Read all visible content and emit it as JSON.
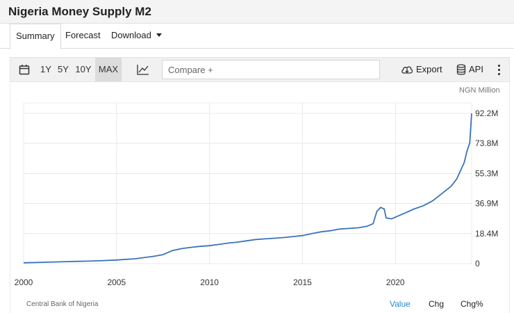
{
  "page": {
    "title": "Nigeria Money Supply M2"
  },
  "tabs": [
    {
      "label": "Summary",
      "active": true
    },
    {
      "label": "Forecast",
      "active": false
    },
    {
      "label": "Download",
      "active": false,
      "has_dropdown": true
    }
  ],
  "toolbar": {
    "ranges": [
      "1Y",
      "5Y",
      "10Y",
      "MAX"
    ],
    "selected_range": "MAX",
    "compare_placeholder": "Compare +",
    "export_label": "Export",
    "api_label": "API",
    "icons": [
      "calendar-icon",
      "line-chart-icon",
      "cloud-download-icon",
      "database-icon",
      "kebab-menu-icon"
    ]
  },
  "source": "Central Bank of Nigeria",
  "view_tabs": [
    {
      "label": "Value",
      "active": true
    },
    {
      "label": "Chg",
      "active": false
    },
    {
      "label": "Chg%",
      "active": false
    }
  ],
  "colors": {
    "line": "#3a73b8",
    "accent": "#2a88c8",
    "grid": "#e8e8e8"
  },
  "chart_data": {
    "type": "line",
    "unit_label": "NGN Million",
    "x_ticks": [
      "2000",
      "2005",
      "2010",
      "2015",
      "2020"
    ],
    "y_ticks": [
      "0",
      "18.4M",
      "36.9M",
      "55.3M",
      "73.8M",
      "92.2M"
    ],
    "ylim": [
      0,
      92.2
    ],
    "xlim": [
      2000,
      2024.1
    ],
    "grid": true,
    "series": [
      {
        "x": [
          2000,
          2001,
          2002,
          2003,
          2004,
          2005,
          2006,
          2007,
          2007.5,
          2008,
          2008.5,
          2009,
          2009.5,
          2010,
          2010.5,
          2011,
          2011.5,
          2012,
          2012.5,
          2013,
          2013.5,
          2014,
          2014.5,
          2015,
          2015.5,
          2016,
          2016.5,
          2017,
          2017.5,
          2018,
          2018.5,
          2018.8,
          2019,
          2019.2,
          2019.4,
          2019.5,
          2019.8,
          2020,
          2020.5,
          2021,
          2021.5,
          2022,
          2022.5,
          2023,
          2023.3,
          2023.5,
          2023.7,
          2023.85,
          2024,
          2024.1
        ],
        "values": [
          0.5,
          0.8,
          1.1,
          1.4,
          1.7,
          2.2,
          3.0,
          4.5,
          5.5,
          8.0,
          9.2,
          10.0,
          10.6,
          11.0,
          11.8,
          12.6,
          13.2,
          14.0,
          14.8,
          15.2,
          15.6,
          16.0,
          16.6,
          17.2,
          18.4,
          19.5,
          20.2,
          21.2,
          21.6,
          22.0,
          23.0,
          24.5,
          32.0,
          34.5,
          33.5,
          28.0,
          27.5,
          28.5,
          31.0,
          33.5,
          35.5,
          38.5,
          43.0,
          47.5,
          52.0,
          57.0,
          62.0,
          69.0,
          74.0,
          92.2
        ]
      }
    ]
  }
}
